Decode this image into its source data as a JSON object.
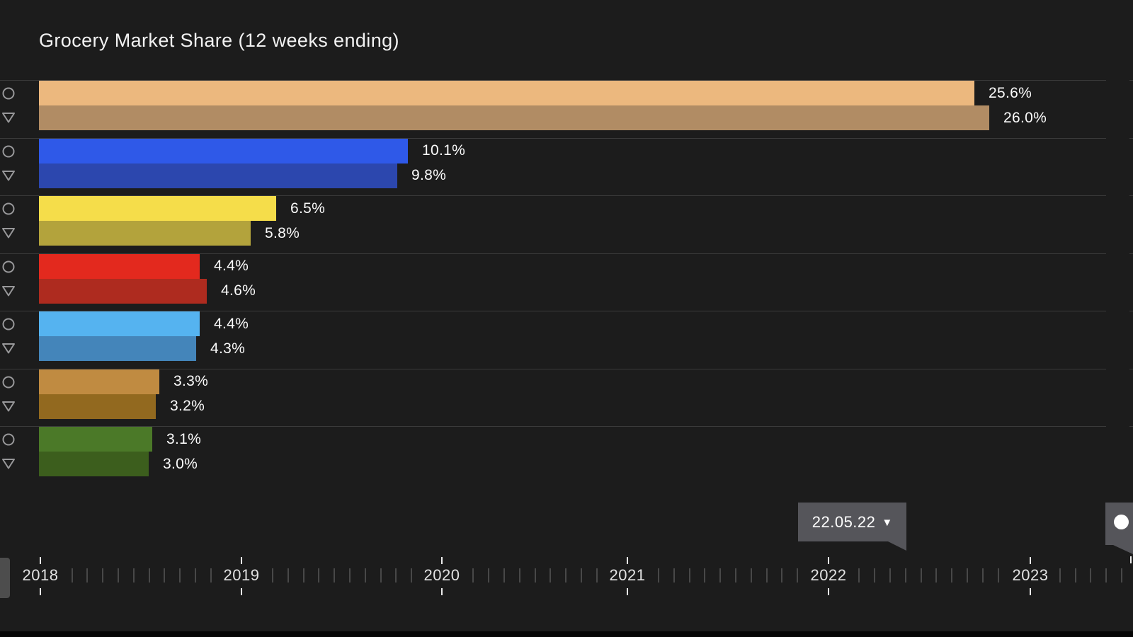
{
  "title": "Grocery Market Share (12 weeks ending)",
  "colors": {
    "background": "#1c1c1c",
    "divider": "#3b3b3b",
    "text_primary": "#f2f2f2",
    "marker_icon": "#98989a",
    "minor_tick": "#484848",
    "year_tick": "#ececec",
    "tooltip_bg": "#55555a",
    "handle_bg": "#4d4d4d",
    "bottom_strip": "#060606"
  },
  "chart_data": {
    "type": "bar",
    "orientation": "horizontal",
    "title": "Grocery Market Share (12 weeks ending)",
    "unit": "%",
    "value_axis": {
      "min": 0,
      "max_visible": 29.2,
      "gridlines": false
    },
    "series_markers": [
      "circle-outline",
      "triangle-down-outline"
    ],
    "groups": [
      {
        "bars": [
          {
            "value": 25.6,
            "label": "25.6%",
            "color": "#ecb87e"
          },
          {
            "value": 26.0,
            "label": "26.0%",
            "color": "#b18c64"
          }
        ]
      },
      {
        "bars": [
          {
            "value": 10.1,
            "label": "10.1%",
            "color": "#2f59e8"
          },
          {
            "value": 9.8,
            "label": "9.8%",
            "color": "#2c47ae"
          }
        ]
      },
      {
        "bars": [
          {
            "value": 6.5,
            "label": "6.5%",
            "color": "#f5dd4a"
          },
          {
            "value": 5.8,
            "label": "5.8%",
            "color": "#b3a33c"
          }
        ]
      },
      {
        "bars": [
          {
            "value": 4.4,
            "label": "4.4%",
            "color": "#e3291e"
          },
          {
            "value": 4.6,
            "label": "4.6%",
            "color": "#ae2b1f"
          }
        ]
      },
      {
        "bars": [
          {
            "value": 4.4,
            "label": "4.4%",
            "color": "#55b3f0"
          },
          {
            "value": 4.3,
            "label": "4.3%",
            "color": "#4485ba"
          }
        ]
      },
      {
        "bars": [
          {
            "value": 3.3,
            "label": "3.3%",
            "color": "#c08b41"
          },
          {
            "value": 3.2,
            "label": "3.2%",
            "color": "#92691f"
          }
        ]
      },
      {
        "bars": [
          {
            "value": 3.1,
            "label": "3.1%",
            "color": "#4b7928"
          },
          {
            "value": 3.0,
            "label": "3.0%",
            "color": "#3c5e1d"
          }
        ]
      }
    ]
  },
  "timeline": {
    "years": [
      "2018",
      "2019",
      "2020",
      "2021",
      "2022",
      "2023"
    ],
    "selected_date_label": "22.05.22",
    "dropdown_icon": "▼"
  }
}
